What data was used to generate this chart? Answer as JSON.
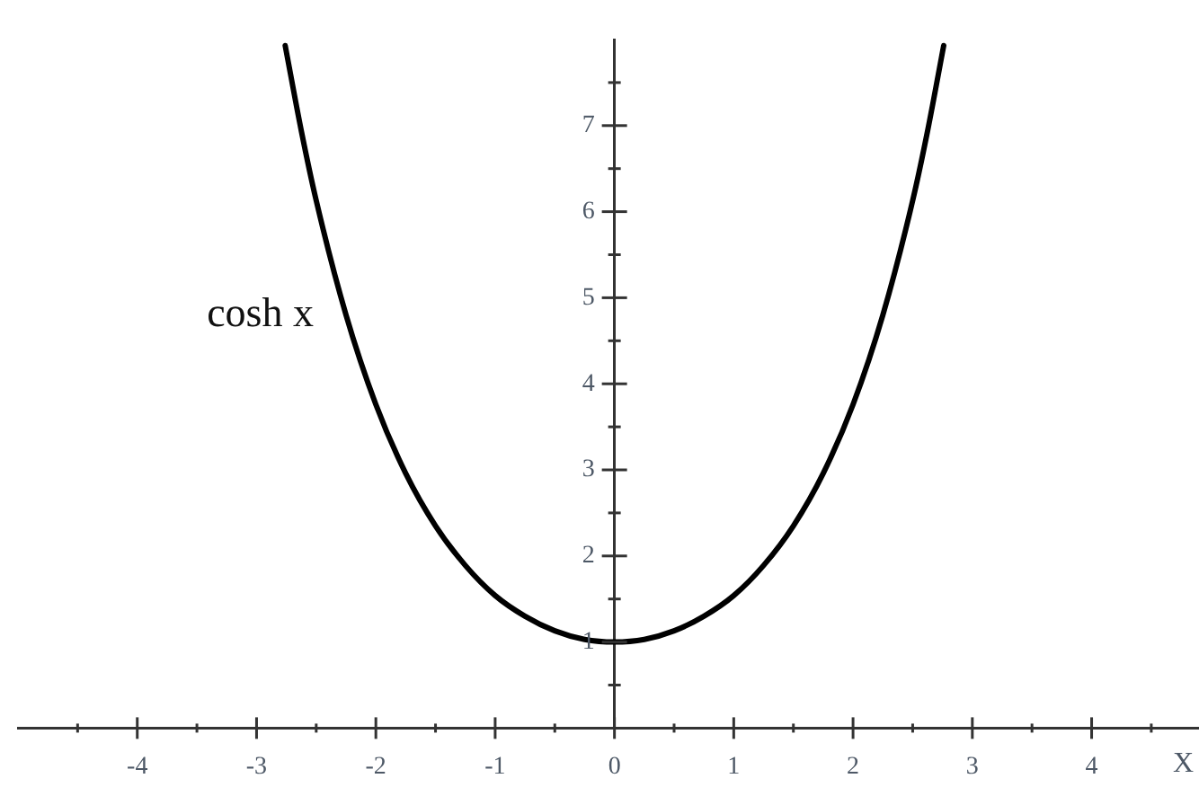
{
  "chart_data": {
    "type": "line",
    "x": [
      -2.76,
      -2.625,
      -2.5,
      -2.25,
      -2,
      -1.75,
      -1.5,
      -1.25,
      -1,
      -0.75,
      -0.5,
      -0.25,
      0,
      0.25,
      0.5,
      0.75,
      1,
      1.25,
      1.5,
      1.75,
      2,
      2.25,
      2.5,
      2.625,
      2.76
    ],
    "series": [
      {
        "name": "cosh x",
        "color": "#000000",
        "values": [
          7.93,
          6.94,
          6.13,
          4.8,
          3.76,
          2.96,
          2.35,
          1.89,
          1.54,
          1.3,
          1.13,
          1.03,
          1,
          1.03,
          1.13,
          1.3,
          1.54,
          1.89,
          2.35,
          2.96,
          3.76,
          4.8,
          6.13,
          6.94,
          7.93
        ]
      }
    ],
    "xlim": [
      -5,
      4.9
    ],
    "ylim": [
      0,
      8
    ],
    "xticks": [
      {
        "value": -4.5,
        "label": null
      },
      -4,
      {
        "value": -3.5,
        "label": null
      },
      -3,
      {
        "value": -2.5,
        "label": null
      },
      -2,
      {
        "value": -1.5,
        "label": null
      },
      -1,
      {
        "value": -0.5,
        "label": null
      },
      0,
      {
        "value": 0.5,
        "label": null
      },
      1,
      {
        "value": 1.5,
        "label": null
      },
      2,
      {
        "value": 2.5,
        "label": null
      },
      3,
      {
        "value": 3.5,
        "label": null
      },
      4,
      {
        "value": 4.5,
        "label": null
      }
    ],
    "yticks": [
      {
        "value": 0.5,
        "label": null
      },
      1,
      {
        "value": 1.5,
        "label": null
      },
      2,
      {
        "value": 2.5,
        "label": null
      },
      3,
      {
        "value": 3.5,
        "label": null
      },
      4,
      {
        "value": 4.5,
        "label": null
      },
      5,
      {
        "value": 5.5,
        "label": null
      },
      6,
      {
        "value": 6.5,
        "label": null
      },
      7,
      {
        "value": 7.5,
        "label": null
      }
    ],
    "xlabel": "X"
  }
}
